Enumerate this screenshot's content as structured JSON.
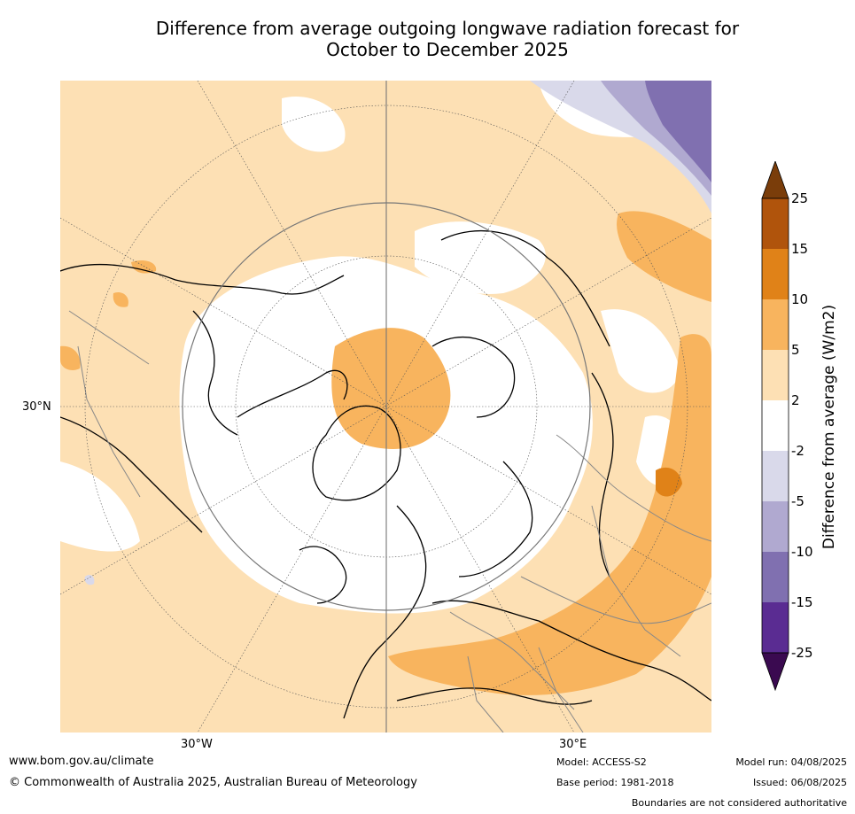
{
  "title_line1": "Difference from average outgoing longwave radiation forecast for",
  "title_line2": "October to December 2025",
  "map": {
    "lat_label": "30°N",
    "lon_labels": [
      "30°W",
      "30°E"
    ]
  },
  "colorbar": {
    "title": "Difference from average (W/m2)",
    "ticks": [
      "25",
      "15",
      "10",
      "5",
      "2",
      "-2",
      "-5",
      "-10",
      "-15",
      "-25"
    ],
    "colors": {
      "over": "#7a3d0a",
      "c15_25": "#b0540c",
      "c10_15": "#e08218",
      "c5_10": "#f8b45e",
      "c2_5": "#fde0b4",
      "neutral": "#ffffff",
      "cm2_m5": "#d9d9ea",
      "cm5_m10": "#b0a9d0",
      "cm10_m15": "#8070b0",
      "cm15_m25": "#5a2c92",
      "under": "#3a0a50"
    }
  },
  "footer": {
    "website": "www.bom.gov.au/climate",
    "copyright": "© Commonwealth of Australia 2025, Australian Bureau of Meteorology",
    "model": "Model: ACCESS-S2",
    "base_period": "Base period: 1981-2018",
    "model_run": "Model run: 04/08/2025",
    "issued": "Issued: 06/08/2025",
    "disclaimer": "Boundaries are not considered authoritative"
  }
}
